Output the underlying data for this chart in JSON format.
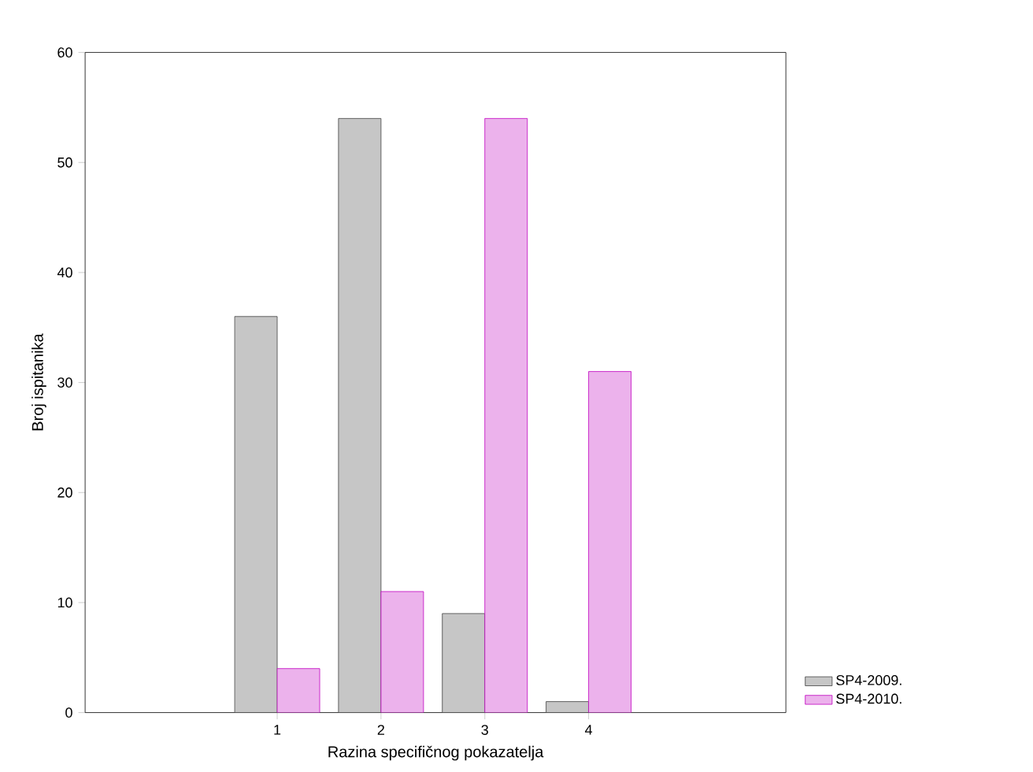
{
  "chart_data": {
    "type": "bar",
    "xlabel": "Razina specifičnog pokazatelja",
    "ylabel": "Broj ispitanika",
    "x": [
      1,
      2,
      3,
      4
    ],
    "xlim": [
      -0.85,
      5.9
    ],
    "xticks": [
      1,
      2,
      3,
      4
    ],
    "ylim": [
      0,
      60
    ],
    "yticks": [
      0,
      10,
      20,
      30,
      40,
      50,
      60
    ],
    "series": [
      {
        "name": "SP4-2009.",
        "color": "#404040",
        "values": [
          36,
          54,
          9,
          1
        ]
      },
      {
        "name": "SP4-2010.",
        "color": "#c000c0",
        "values": [
          4,
          11,
          54,
          31
        ]
      }
    ],
    "grid": false,
    "legend": "bottom right"
  }
}
